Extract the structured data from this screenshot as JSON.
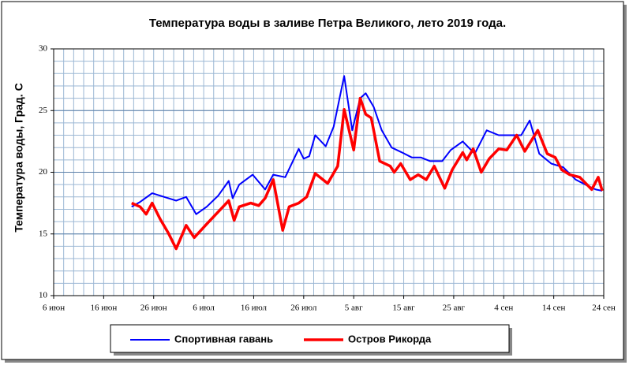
{
  "chart_data": {
    "type": "line",
    "title": "Температура воды в заливе Петра Великого,  лето 2019 года.",
    "y_label": "Температура воды, Град. С",
    "xlim": [
      0,
      110
    ],
    "ylim": [
      10,
      30
    ],
    "xticks": [
      {
        "value": 0,
        "label": "6 июн"
      },
      {
        "value": 10,
        "label": "16 июн"
      },
      {
        "value": 20,
        "label": "26 июн"
      },
      {
        "value": 30,
        "label": "6 июл"
      },
      {
        "value": 40,
        "label": "16 июл"
      },
      {
        "value": 50,
        "label": "26 июл"
      },
      {
        "value": 60,
        "label": "5 авг"
      },
      {
        "value": 70,
        "label": "15 авг"
      },
      {
        "value": 80,
        "label": "25 авг"
      },
      {
        "value": 90,
        "label": "4 сен"
      },
      {
        "value": 100,
        "label": "14 сен"
      },
      {
        "value": 110,
        "label": "24 сен"
      }
    ],
    "yticks": [
      10,
      15,
      20,
      25,
      30
    ],
    "grid": true,
    "minor_grid": true,
    "legend": "bottom",
    "series": [
      {
        "name": "Спортивная гавань",
        "color": "#0000ff",
        "x": [
          15.6,
          17.3,
          19.7,
          22.1,
          24.5,
          26.5,
          28.5,
          30.6,
          32.9,
          35,
          35.8,
          37.1,
          39.8,
          42.3,
          43.9,
          46.3,
          49,
          50,
          51.1,
          52.3,
          54.4,
          56,
          58.1,
          59.7,
          61.3,
          62.4,
          64,
          65.6,
          67.6,
          69.7,
          71.6,
          73.4,
          75.3,
          77.7,
          79.4,
          81.8,
          84.2,
          86.6,
          89,
          91.5,
          93.5,
          95.2,
          97.1,
          99.5,
          101.9,
          104.4,
          106.8,
          108.4,
          109.7
        ],
        "values": [
          17.2,
          17.6,
          18.3,
          18.0,
          17.7,
          18.0,
          16.6,
          17.2,
          18.1,
          19.3,
          17.9,
          19.0,
          19.8,
          18.6,
          19.8,
          19.6,
          21.9,
          21.1,
          21.3,
          23.0,
          22.1,
          23.7,
          27.8,
          23.4,
          26.0,
          26.4,
          25.3,
          23.4,
          22.0,
          21.6,
          21.2,
          21.2,
          20.9,
          20.9,
          21.8,
          22.5,
          21.5,
          23.4,
          23.0,
          23.0,
          23.0,
          24.2,
          21.5,
          20.7,
          20.4,
          19.4,
          18.9,
          18.6,
          18.5
        ]
      },
      {
        "name": "Остров Рикорда",
        "color": "#ff0000",
        "x": [
          15.6,
          17.3,
          18.5,
          19.7,
          21.3,
          22.9,
          24.5,
          26.5,
          28.1,
          30.6,
          33.4,
          35,
          36.1,
          37.1,
          39.4,
          41,
          42.3,
          43.9,
          45.8,
          47.1,
          49,
          50.6,
          52.3,
          54.8,
          56.8,
          58.1,
          60,
          61.3,
          62.4,
          63.5,
          65.2,
          67.3,
          68.1,
          69.4,
          71.3,
          72.9,
          74.5,
          76.1,
          78.2,
          79.7,
          81.8,
          82.6,
          83.9,
          85.5,
          87.1,
          89,
          90.6,
          92.6,
          94.2,
          96.8,
          98.7,
          100.3,
          101.6,
          103.2,
          105.2,
          107.6,
          108.9,
          109.7
        ],
        "values": [
          17.5,
          17.2,
          16.6,
          17.5,
          16.2,
          15.1,
          13.8,
          15.7,
          14.7,
          15.8,
          17.0,
          17.7,
          16.1,
          17.2,
          17.5,
          17.3,
          17.9,
          19.4,
          15.3,
          17.2,
          17.5,
          18.0,
          19.9,
          19.1,
          20.5,
          25.1,
          21.8,
          26.0,
          24.7,
          24.4,
          20.9,
          20.5,
          20.0,
          20.7,
          19.4,
          19.8,
          19.4,
          20.5,
          18.7,
          20.2,
          21.6,
          21.0,
          21.9,
          20.0,
          21.1,
          21.9,
          21.8,
          23.0,
          21.7,
          23.4,
          21.5,
          21.2,
          20.2,
          19.8,
          19.6,
          18.6,
          19.6,
          18.5
        ]
      }
    ]
  }
}
